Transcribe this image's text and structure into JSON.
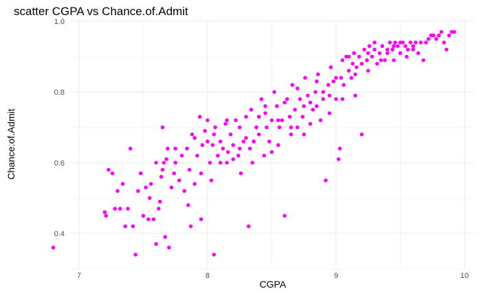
{
  "chart_data": {
    "type": "scatter",
    "title": "scatter CGPA vs Chance.of.Admit",
    "xlabel": "CGPA",
    "ylabel": "Chance.of.Admit",
    "xlim": [
      6.8,
      9.92
    ],
    "ylim": [
      0.34,
      0.97
    ],
    "xticks": [
      "7",
      "8",
      "9",
      "10"
    ],
    "yticks": [
      "0.4",
      "0.6",
      "0.8",
      "1.0"
    ],
    "point_color": "#ff00ff",
    "grid": true,
    "legend": "none",
    "points": [
      [
        6.8,
        0.36
      ],
      [
        7.2,
        0.46
      ],
      [
        7.21,
        0.45
      ],
      [
        7.23,
        0.58
      ],
      [
        7.26,
        0.57
      ],
      [
        7.28,
        0.47
      ],
      [
        7.32,
        0.47
      ],
      [
        7.34,
        0.54
      ],
      [
        7.36,
        0.42
      ],
      [
        7.38,
        0.47
      ],
      [
        7.4,
        0.64
      ],
      [
        7.42,
        0.42
      ],
      [
        7.44,
        0.34
      ],
      [
        7.46,
        0.52
      ],
      [
        7.48,
        0.57
      ],
      [
        7.5,
        0.45
      ],
      [
        7.52,
        0.53
      ],
      [
        7.54,
        0.44
      ],
      [
        7.56,
        0.54
      ],
      [
        7.58,
        0.44
      ],
      [
        7.6,
        0.37
      ],
      [
        7.62,
        0.47
      ],
      [
        7.63,
        0.49
      ],
      [
        7.64,
        0.56
      ],
      [
        7.65,
        0.58
      ],
      [
        7.66,
        0.6
      ],
      [
        7.67,
        0.39
      ],
      [
        7.68,
        0.61
      ],
      [
        7.69,
        0.64
      ],
      [
        7.7,
        0.36
      ],
      [
        7.65,
        0.7
      ],
      [
        7.72,
        0.53
      ],
      [
        7.74,
        0.57
      ],
      [
        7.75,
        0.64
      ],
      [
        7.78,
        0.55
      ],
      [
        7.8,
        0.62
      ],
      [
        7.82,
        0.52
      ],
      [
        7.84,
        0.64
      ],
      [
        7.86,
        0.58
      ],
      [
        7.87,
        0.42
      ],
      [
        7.88,
        0.68
      ],
      [
        7.9,
        0.54
      ],
      [
        7.92,
        0.62
      ],
      [
        7.94,
        0.73
      ],
      [
        7.95,
        0.57
      ],
      [
        7.96,
        0.65
      ],
      [
        7.98,
        0.69
      ],
      [
        8.0,
        0.66
      ],
      [
        8.02,
        0.6
      ],
      [
        8.03,
        0.55
      ],
      [
        8.04,
        0.65
      ],
      [
        8.05,
        0.34
      ],
      [
        8.06,
        0.7
      ],
      [
        8.08,
        0.62
      ],
      [
        8.1,
        0.66
      ],
      [
        8.12,
        0.64
      ],
      [
        8.14,
        0.71
      ],
      [
        8.15,
        0.6
      ],
      [
        8.16,
        0.63
      ],
      [
        8.18,
        0.68
      ],
      [
        8.2,
        0.65
      ],
      [
        8.22,
        0.72
      ],
      [
        8.24,
        0.62
      ],
      [
        8.25,
        0.7
      ],
      [
        8.26,
        0.57
      ],
      [
        8.28,
        0.66
      ],
      [
        8.3,
        0.73
      ],
      [
        8.32,
        0.42
      ],
      [
        8.33,
        0.64
      ],
      [
        8.34,
        0.75
      ],
      [
        8.36,
        0.66
      ],
      [
        8.38,
        0.7
      ],
      [
        8.4,
        0.68
      ],
      [
        8.42,
        0.78
      ],
      [
        8.44,
        0.62
      ],
      [
        8.45,
        0.74
      ],
      [
        8.46,
        0.7
      ],
      [
        8.48,
        0.66
      ],
      [
        8.5,
        0.72
      ],
      [
        8.52,
        0.8
      ],
      [
        8.54,
        0.76
      ],
      [
        8.55,
        0.65
      ],
      [
        8.56,
        0.7
      ],
      [
        8.58,
        0.72
      ],
      [
        8.6,
        0.45
      ],
      [
        8.62,
        0.78
      ],
      [
        8.64,
        0.73
      ],
      [
        8.65,
        0.68
      ],
      [
        8.66,
        0.82
      ],
      [
        8.68,
        0.75
      ],
      [
        8.7,
        0.7
      ],
      [
        8.72,
        0.78
      ],
      [
        8.74,
        0.73
      ],
      [
        8.75,
        0.76
      ],
      [
        8.76,
        0.84
      ],
      [
        8.78,
        0.79
      ],
      [
        8.8,
        0.71
      ],
      [
        8.82,
        0.75
      ],
      [
        8.84,
        0.8
      ],
      [
        8.85,
        0.76
      ],
      [
        8.86,
        0.85
      ],
      [
        8.88,
        0.72
      ],
      [
        8.9,
        0.78
      ],
      [
        8.92,
        0.55
      ],
      [
        8.94,
        0.82
      ],
      [
        8.95,
        0.79
      ],
      [
        8.96,
        0.87
      ],
      [
        8.98,
        0.83
      ],
      [
        9.0,
        0.78
      ],
      [
        9.02,
        0.61
      ],
      [
        9.03,
        0.64
      ],
      [
        9.04,
        0.84
      ],
      [
        9.05,
        0.89
      ],
      [
        9.06,
        0.82
      ],
      [
        9.08,
        0.9
      ],
      [
        9.1,
        0.86
      ],
      [
        9.12,
        0.84
      ],
      [
        9.13,
        0.88
      ],
      [
        9.14,
        0.91
      ],
      [
        9.15,
        0.79
      ],
      [
        9.16,
        0.87
      ],
      [
        9.18,
        0.9
      ],
      [
        9.2,
        0.68
      ],
      [
        9.22,
        0.92
      ],
      [
        9.24,
        0.89
      ],
      [
        9.25,
        0.86
      ],
      [
        9.26,
        0.93
      ],
      [
        9.28,
        0.9
      ],
      [
        9.3,
        0.94
      ],
      [
        9.32,
        0.88
      ],
      [
        9.34,
        0.91
      ],
      [
        9.36,
        0.93
      ],
      [
        9.38,
        0.89
      ],
      [
        9.4,
        0.91
      ],
      [
        9.42,
        0.94
      ],
      [
        9.44,
        0.92
      ],
      [
        9.45,
        0.89
      ],
      [
        9.46,
        0.94
      ],
      [
        9.48,
        0.93
      ],
      [
        9.5,
        0.91
      ],
      [
        9.52,
        0.94
      ],
      [
        9.54,
        0.93
      ],
      [
        9.56,
        0.92
      ],
      [
        9.58,
        0.94
      ],
      [
        9.6,
        0.93
      ],
      [
        9.62,
        0.94
      ],
      [
        9.64,
        0.91
      ],
      [
        9.66,
        0.94
      ],
      [
        9.68,
        0.89
      ],
      [
        9.7,
        0.94
      ],
      [
        9.72,
        0.95
      ],
      [
        9.74,
        0.96
      ],
      [
        9.76,
        0.96
      ],
      [
        9.78,
        0.95
      ],
      [
        9.8,
        0.96
      ],
      [
        9.82,
        0.97
      ],
      [
        9.84,
        0.94
      ],
      [
        9.86,
        0.92
      ],
      [
        9.88,
        0.96
      ],
      [
        9.9,
        0.97
      ],
      [
        9.92,
        0.97
      ],
      [
        7.3,
        0.52
      ],
      [
        7.55,
        0.5
      ],
      [
        7.6,
        0.6
      ],
      [
        7.75,
        0.6
      ],
      [
        7.85,
        0.48
      ],
      [
        7.9,
        0.67
      ],
      [
        7.95,
        0.44
      ],
      [
        8.0,
        0.72
      ],
      [
        8.05,
        0.68
      ],
      [
        8.1,
        0.6
      ],
      [
        8.15,
        0.72
      ],
      [
        8.2,
        0.61
      ],
      [
        8.25,
        0.64
      ],
      [
        8.3,
        0.67
      ],
      [
        8.35,
        0.6
      ],
      [
        8.4,
        0.73
      ],
      [
        8.45,
        0.76
      ],
      [
        8.5,
        0.63
      ],
      [
        8.55,
        0.72
      ],
      [
        8.6,
        0.77
      ],
      [
        8.65,
        0.7
      ],
      [
        8.7,
        0.81
      ],
      [
        8.75,
        0.68
      ],
      [
        8.8,
        0.77
      ],
      [
        8.85,
        0.83
      ],
      [
        8.9,
        0.8
      ],
      [
        8.95,
        0.74
      ],
      [
        9.0,
        0.84
      ],
      [
        9.05,
        0.78
      ],
      [
        9.1,
        0.9
      ],
      [
        9.15,
        0.85
      ],
      [
        9.2,
        0.88
      ],
      [
        9.25,
        0.91
      ],
      [
        9.3,
        0.92
      ],
      [
        9.35,
        0.89
      ],
      [
        9.4,
        0.92
      ],
      [
        9.45,
        0.93
      ],
      [
        9.5,
        0.94
      ],
      [
        9.55,
        0.9
      ],
      [
        9.6,
        0.92
      ]
    ]
  }
}
